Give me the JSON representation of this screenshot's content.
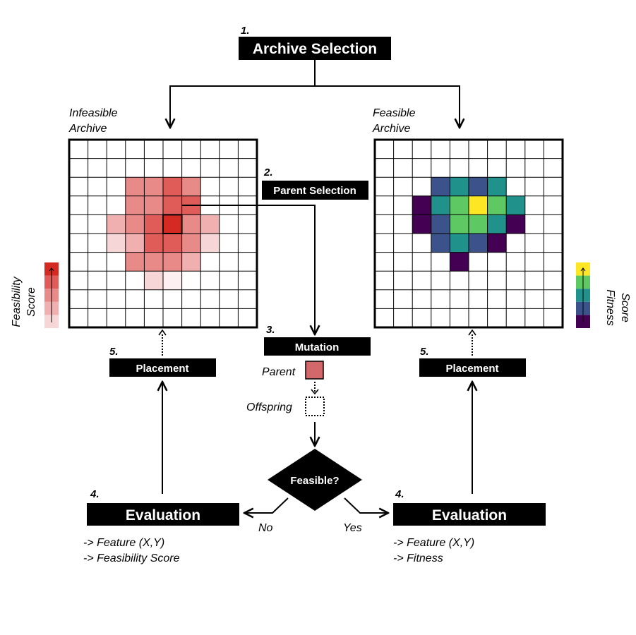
{
  "steps": {
    "archive_selection": {
      "number": "1.",
      "label": "Archive Selection"
    },
    "parent_selection": {
      "number": "2.",
      "label": "Parent Selection"
    },
    "mutation": {
      "number": "3.",
      "label": "Mutation"
    },
    "evaluation_left": {
      "number": "4.",
      "label": "Evaluation",
      "notes": [
        "-> Feature (X,Y)",
        "-> Feasibility Score"
      ]
    },
    "evaluation_right": {
      "number": "4.",
      "label": "Evaluation",
      "notes": [
        "-> Feature (X,Y)",
        "-> Fitness"
      ]
    },
    "placement_left": {
      "number": "5.",
      "label": "Placement"
    },
    "placement_right": {
      "number": "5.",
      "label": "Placement"
    }
  },
  "archives": {
    "infeasible": {
      "title_line1": "Infeasible",
      "title_line2": "Archive",
      "score_label_line1": "Feasibility",
      "score_label_line2": "Score"
    },
    "feasible": {
      "title_line1": "Feasible",
      "title_line2": "Archive",
      "score_label_line1": "Fitness",
      "score_label_line2": "Score"
    }
  },
  "decision": {
    "label": "Feasible?",
    "no": "No",
    "yes": "Yes"
  },
  "mutation_items": {
    "parent": "Parent",
    "offspring": "Offspring"
  },
  "colors": {
    "red_scale": [
      "#f6d6d6",
      "#f0b0b0",
      "#e88a88",
      "#df5c58",
      "#d52a22"
    ],
    "viridis": [
      "#440154",
      "#3b528b",
      "#21918c",
      "#5ec962",
      "#fde725"
    ],
    "parent_fill": "#d2686a"
  },
  "grid_cells": {
    "size": 10,
    "infeasible": [
      [
        2,
        3,
        2
      ],
      [
        2,
        4,
        2
      ],
      [
        2,
        5,
        3
      ],
      [
        2,
        6,
        2
      ],
      [
        3,
        3,
        2
      ],
      [
        3,
        4,
        2
      ],
      [
        3,
        5,
        3
      ],
      [
        3,
        6,
        3
      ],
      [
        4,
        2,
        1
      ],
      [
        4,
        3,
        2
      ],
      [
        4,
        4,
        3
      ],
      [
        4,
        5,
        4
      ],
      [
        4,
        6,
        2
      ],
      [
        4,
        7,
        1
      ],
      [
        5,
        2,
        0
      ],
      [
        5,
        3,
        1
      ],
      [
        5,
        4,
        3
      ],
      [
        5,
        5,
        3
      ],
      [
        5,
        6,
        2
      ],
      [
        5,
        7,
        0
      ],
      [
        6,
        3,
        2
      ],
      [
        6,
        4,
        2
      ],
      [
        6,
        5,
        2
      ],
      [
        6,
        6,
        1
      ],
      [
        7,
        4,
        0
      ],
      [
        7,
        5,
        -1
      ]
    ],
    "infeasible_selected": [
      4,
      5
    ],
    "feasible": [
      [
        2,
        3,
        1
      ],
      [
        2,
        4,
        2
      ],
      [
        2,
        5,
        1
      ],
      [
        2,
        6,
        2
      ],
      [
        3,
        2,
        0
      ],
      [
        3,
        3,
        2
      ],
      [
        3,
        4,
        3
      ],
      [
        3,
        5,
        4
      ],
      [
        3,
        6,
        3
      ],
      [
        3,
        7,
        2
      ],
      [
        4,
        2,
        0
      ],
      [
        4,
        3,
        1
      ],
      [
        4,
        4,
        3
      ],
      [
        4,
        5,
        3
      ],
      [
        4,
        6,
        2
      ],
      [
        4,
        7,
        0
      ],
      [
        5,
        3,
        1
      ],
      [
        5,
        4,
        2
      ],
      [
        5,
        5,
        1
      ],
      [
        5,
        6,
        0
      ],
      [
        6,
        4,
        0
      ]
    ]
  }
}
